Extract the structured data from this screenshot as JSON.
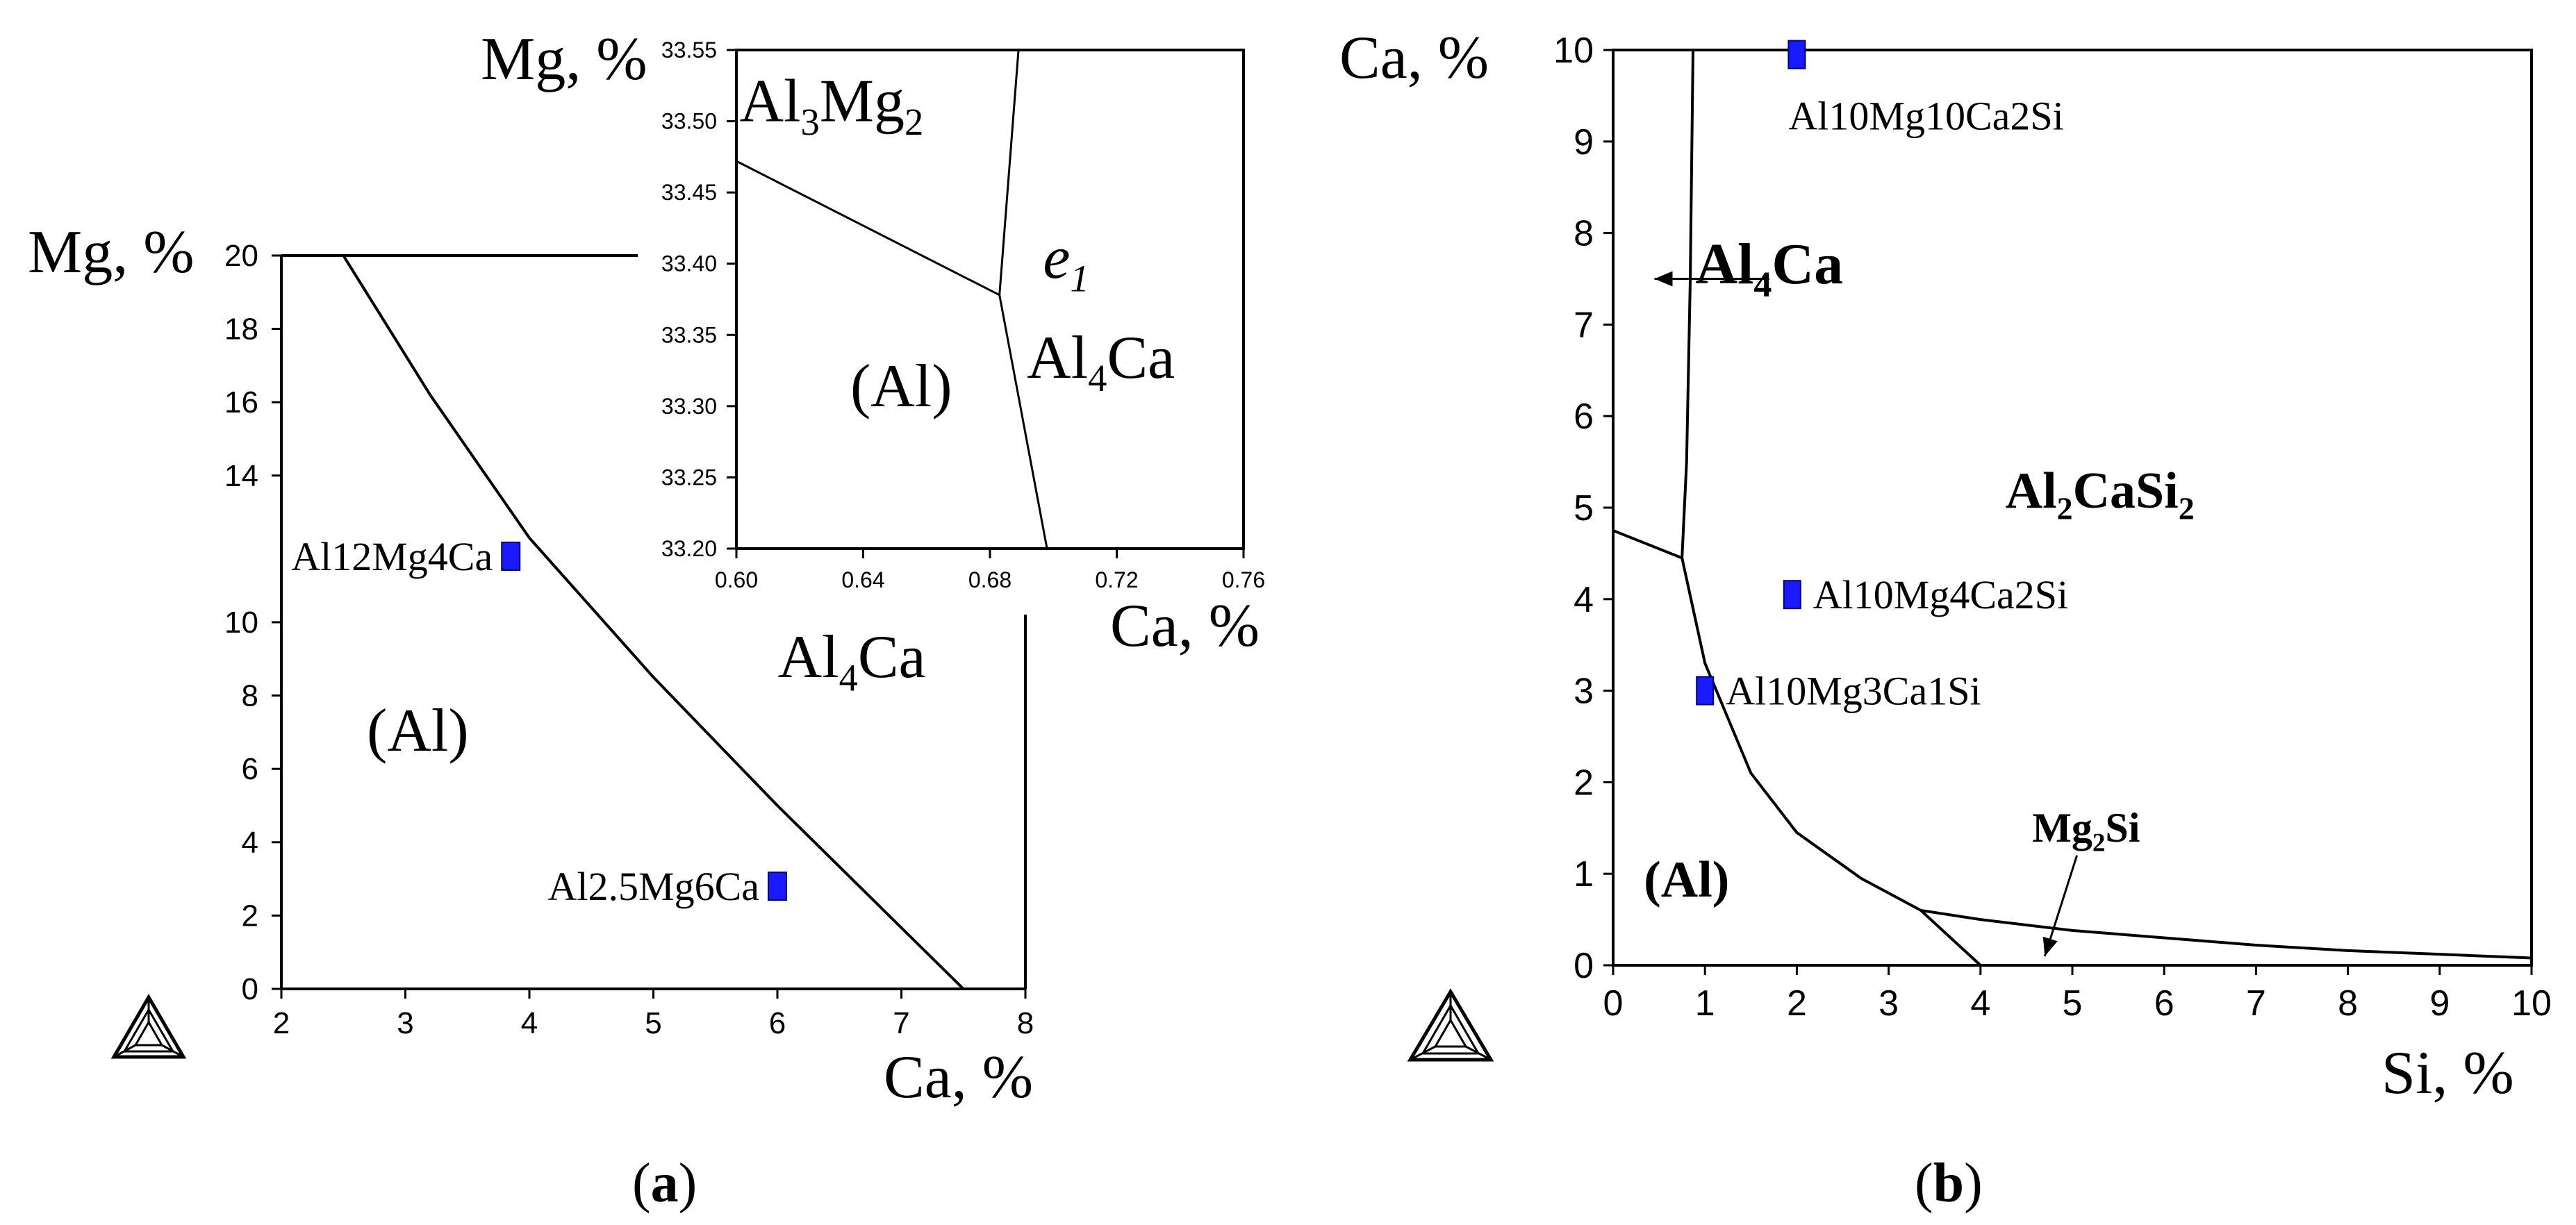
{
  "panels": [
    {
      "label_open": "(",
      "label_letter": "a",
      "label_close": ")"
    },
    {
      "label_open": "(",
      "label_letter": "b",
      "label_close": ")"
    }
  ],
  "chart_data": [
    {
      "type": "scatter",
      "panel": "a",
      "xlabel": "Ca, %",
      "ylabel": "Mg, %",
      "xlim": [
        2,
        8
      ],
      "ylim": [
        0,
        20
      ],
      "x_ticks": [
        2,
        3,
        4,
        5,
        6,
        7,
        8
      ],
      "y_ticks": [
        0,
        2,
        4,
        6,
        8,
        10,
        14,
        16,
        18,
        20
      ],
      "boundaries": [
        {
          "points": [
            [
              2.5,
              20
            ],
            [
              3.2,
              16.2
            ],
            [
              4.0,
              12.3
            ],
            [
              5.0,
              8.5
            ],
            [
              6.0,
              5.0
            ],
            [
              7.5,
              0
            ]
          ]
        }
      ],
      "regions": [
        {
          "text": "(Al)",
          "x": 3.1,
          "y": 6.5
        },
        {
          "text": "Al",
          "sub": "4",
          "rest": "Ca",
          "x": 6.6,
          "y": 8.5
        }
      ],
      "alloys": [
        {
          "name": "Al12Mg4Ca",
          "x": 3.85,
          "y": 11.8
        },
        {
          "name": "Al2.5Mg6Ca",
          "x": 6.0,
          "y": 2.8
        }
      ]
    },
    {
      "type": "line",
      "panel": "a-inset",
      "xlabel": "Ca, %",
      "ylabel": "Mg, %",
      "xlim": [
        0.6,
        0.76
      ],
      "ylim": [
        33.2,
        33.55
      ],
      "x_ticks": [
        "0.60",
        "0.64",
        "0.68",
        "0.72",
        "0.76"
      ],
      "y_ticks": [
        "33.20",
        "33.25",
        "33.30",
        "33.35",
        "33.40",
        "33.45",
        "33.50",
        "33.55"
      ],
      "boundaries": [
        {
          "points": [
            [
              0.6,
              33.472
            ],
            [
              0.683,
              33.378
            ]
          ]
        },
        {
          "points": [
            [
              0.683,
              33.378
            ],
            [
              0.689,
              33.55
            ]
          ]
        },
        {
          "points": [
            [
              0.683,
              33.378
            ],
            [
              0.698,
              33.2
            ]
          ]
        }
      ],
      "regions": [
        {
          "text": "Al",
          "sub": "3",
          "mid": "Mg",
          "sub2": "2",
          "x": 0.63,
          "y": 33.5
        },
        {
          "text": "e",
          "sub": "1",
          "x": 0.704,
          "y": 33.39
        },
        {
          "text": "(Al)",
          "x": 0.652,
          "y": 33.3
        },
        {
          "text": "Al",
          "sub": "4",
          "rest": "Ca",
          "x": 0.715,
          "y": 33.32
        }
      ]
    },
    {
      "type": "scatter",
      "panel": "b",
      "xlabel": "Si, %",
      "ylabel": "Ca, %",
      "xlim": [
        0,
        10
      ],
      "ylim": [
        0,
        10
      ],
      "x_ticks": [
        0,
        1,
        2,
        3,
        4,
        5,
        6,
        7,
        8,
        9,
        10
      ],
      "y_ticks": [
        0,
        1,
        2,
        3,
        4,
        5,
        6,
        7,
        8,
        9,
        10
      ],
      "boundaries": [
        {
          "points": [
            [
              0,
              4.75
            ],
            [
              0.75,
              4.45
            ]
          ]
        },
        {
          "points": [
            [
              0.75,
              4.45
            ],
            [
              0.8,
              5.5
            ],
            [
              0.84,
              7.5
            ],
            [
              0.87,
              10
            ]
          ]
        },
        {
          "points": [
            [
              0.75,
              4.45
            ],
            [
              1.0,
              3.3
            ],
            [
              1.5,
              2.1
            ],
            [
              2.0,
              1.45
            ],
            [
              2.7,
              0.95
            ],
            [
              3.35,
              0.6
            ]
          ]
        },
        {
          "points": [
            [
              3.35,
              0.6
            ],
            [
              4.0,
              0
            ]
          ]
        },
        {
          "points": [
            [
              3.35,
              0.6
            ],
            [
              4.0,
              0.5
            ],
            [
              5.0,
              0.38
            ],
            [
              6.0,
              0.3
            ],
            [
              7.0,
              0.22
            ],
            [
              8.0,
              0.16
            ],
            [
              9.0,
              0.12
            ],
            [
              10.0,
              0.08
            ]
          ]
        }
      ],
      "regions": [
        {
          "text": "Al",
          "sub": "4",
          "rest": "Ca",
          "x": 1.7,
          "y": 7.45,
          "bold": true
        },
        {
          "text": "Al",
          "sub": "2",
          "mid": "CaSi",
          "sub2": "2",
          "x": 5.3,
          "y": 5.0,
          "bold": true
        },
        {
          "text": "(Al)",
          "x": 0.8,
          "y": 0.75,
          "bold": true
        },
        {
          "text": "Mg",
          "sub": "2",
          "rest": "Si",
          "x": 5.15,
          "y": 1.35,
          "bold": true
        }
      ],
      "arrows": [
        {
          "from": [
            1.7,
            7.5
          ],
          "to": [
            0.45,
            7.5
          ]
        },
        {
          "from": [
            5.05,
            1.2
          ],
          "to": [
            4.7,
            0.1
          ]
        }
      ],
      "alloys": [
        {
          "name": "Al10Mg10Ca2Si",
          "x": 2.0,
          "y": 9.95
        },
        {
          "name": "Al10Mg4Ca2Si",
          "x": 1.95,
          "y": 4.05
        },
        {
          "name": "Al10Mg3Ca1Si",
          "x": 1.0,
          "y": 3.0
        }
      ]
    }
  ]
}
